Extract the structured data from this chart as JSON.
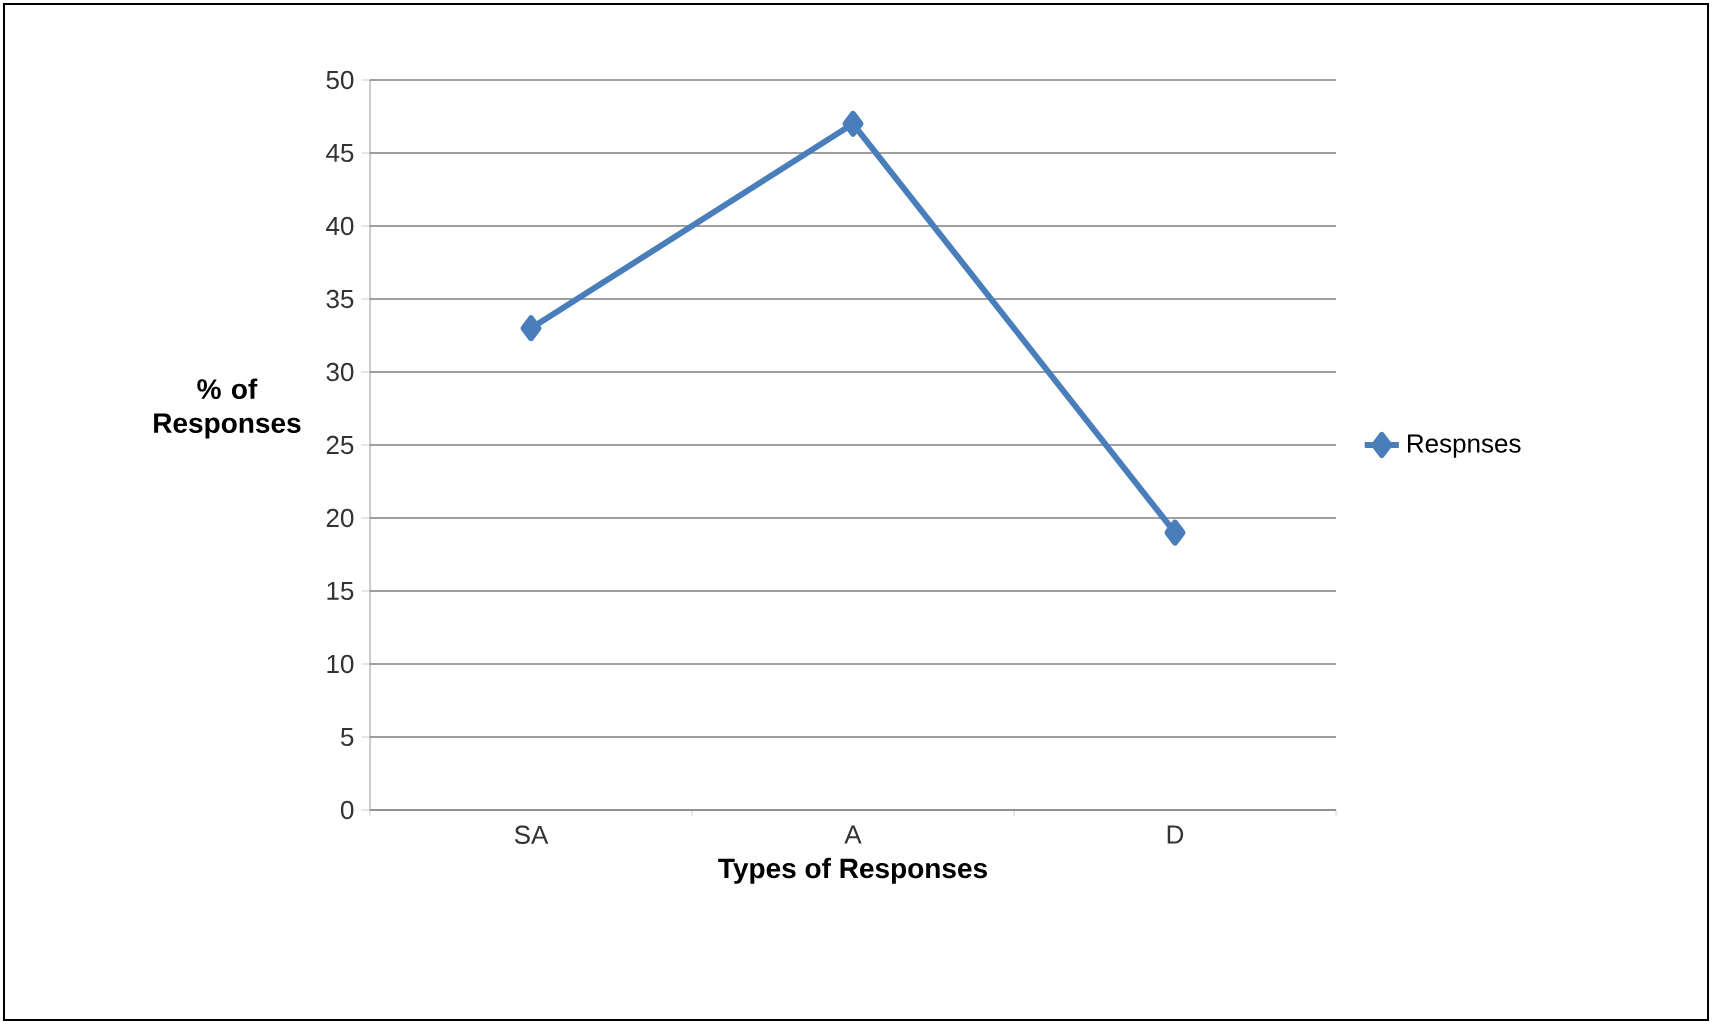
{
  "chart_data": {
    "type": "line",
    "xlabel": "Types of Responses",
    "ylabel": "% of Responses",
    "categories": [
      "SA",
      "A",
      "D"
    ],
    "series": [
      {
        "name": "Respnses",
        "color": "#4a7ebb",
        "values": [
          33,
          47,
          19
        ]
      }
    ],
    "ylim": [
      0,
      50
    ],
    "yticks": [
      0,
      5,
      10,
      15,
      20,
      25,
      30,
      35,
      40,
      45,
      50
    ],
    "grid": "y",
    "legend": "right",
    "marker": "diamond",
    "line_style": "solid"
  }
}
